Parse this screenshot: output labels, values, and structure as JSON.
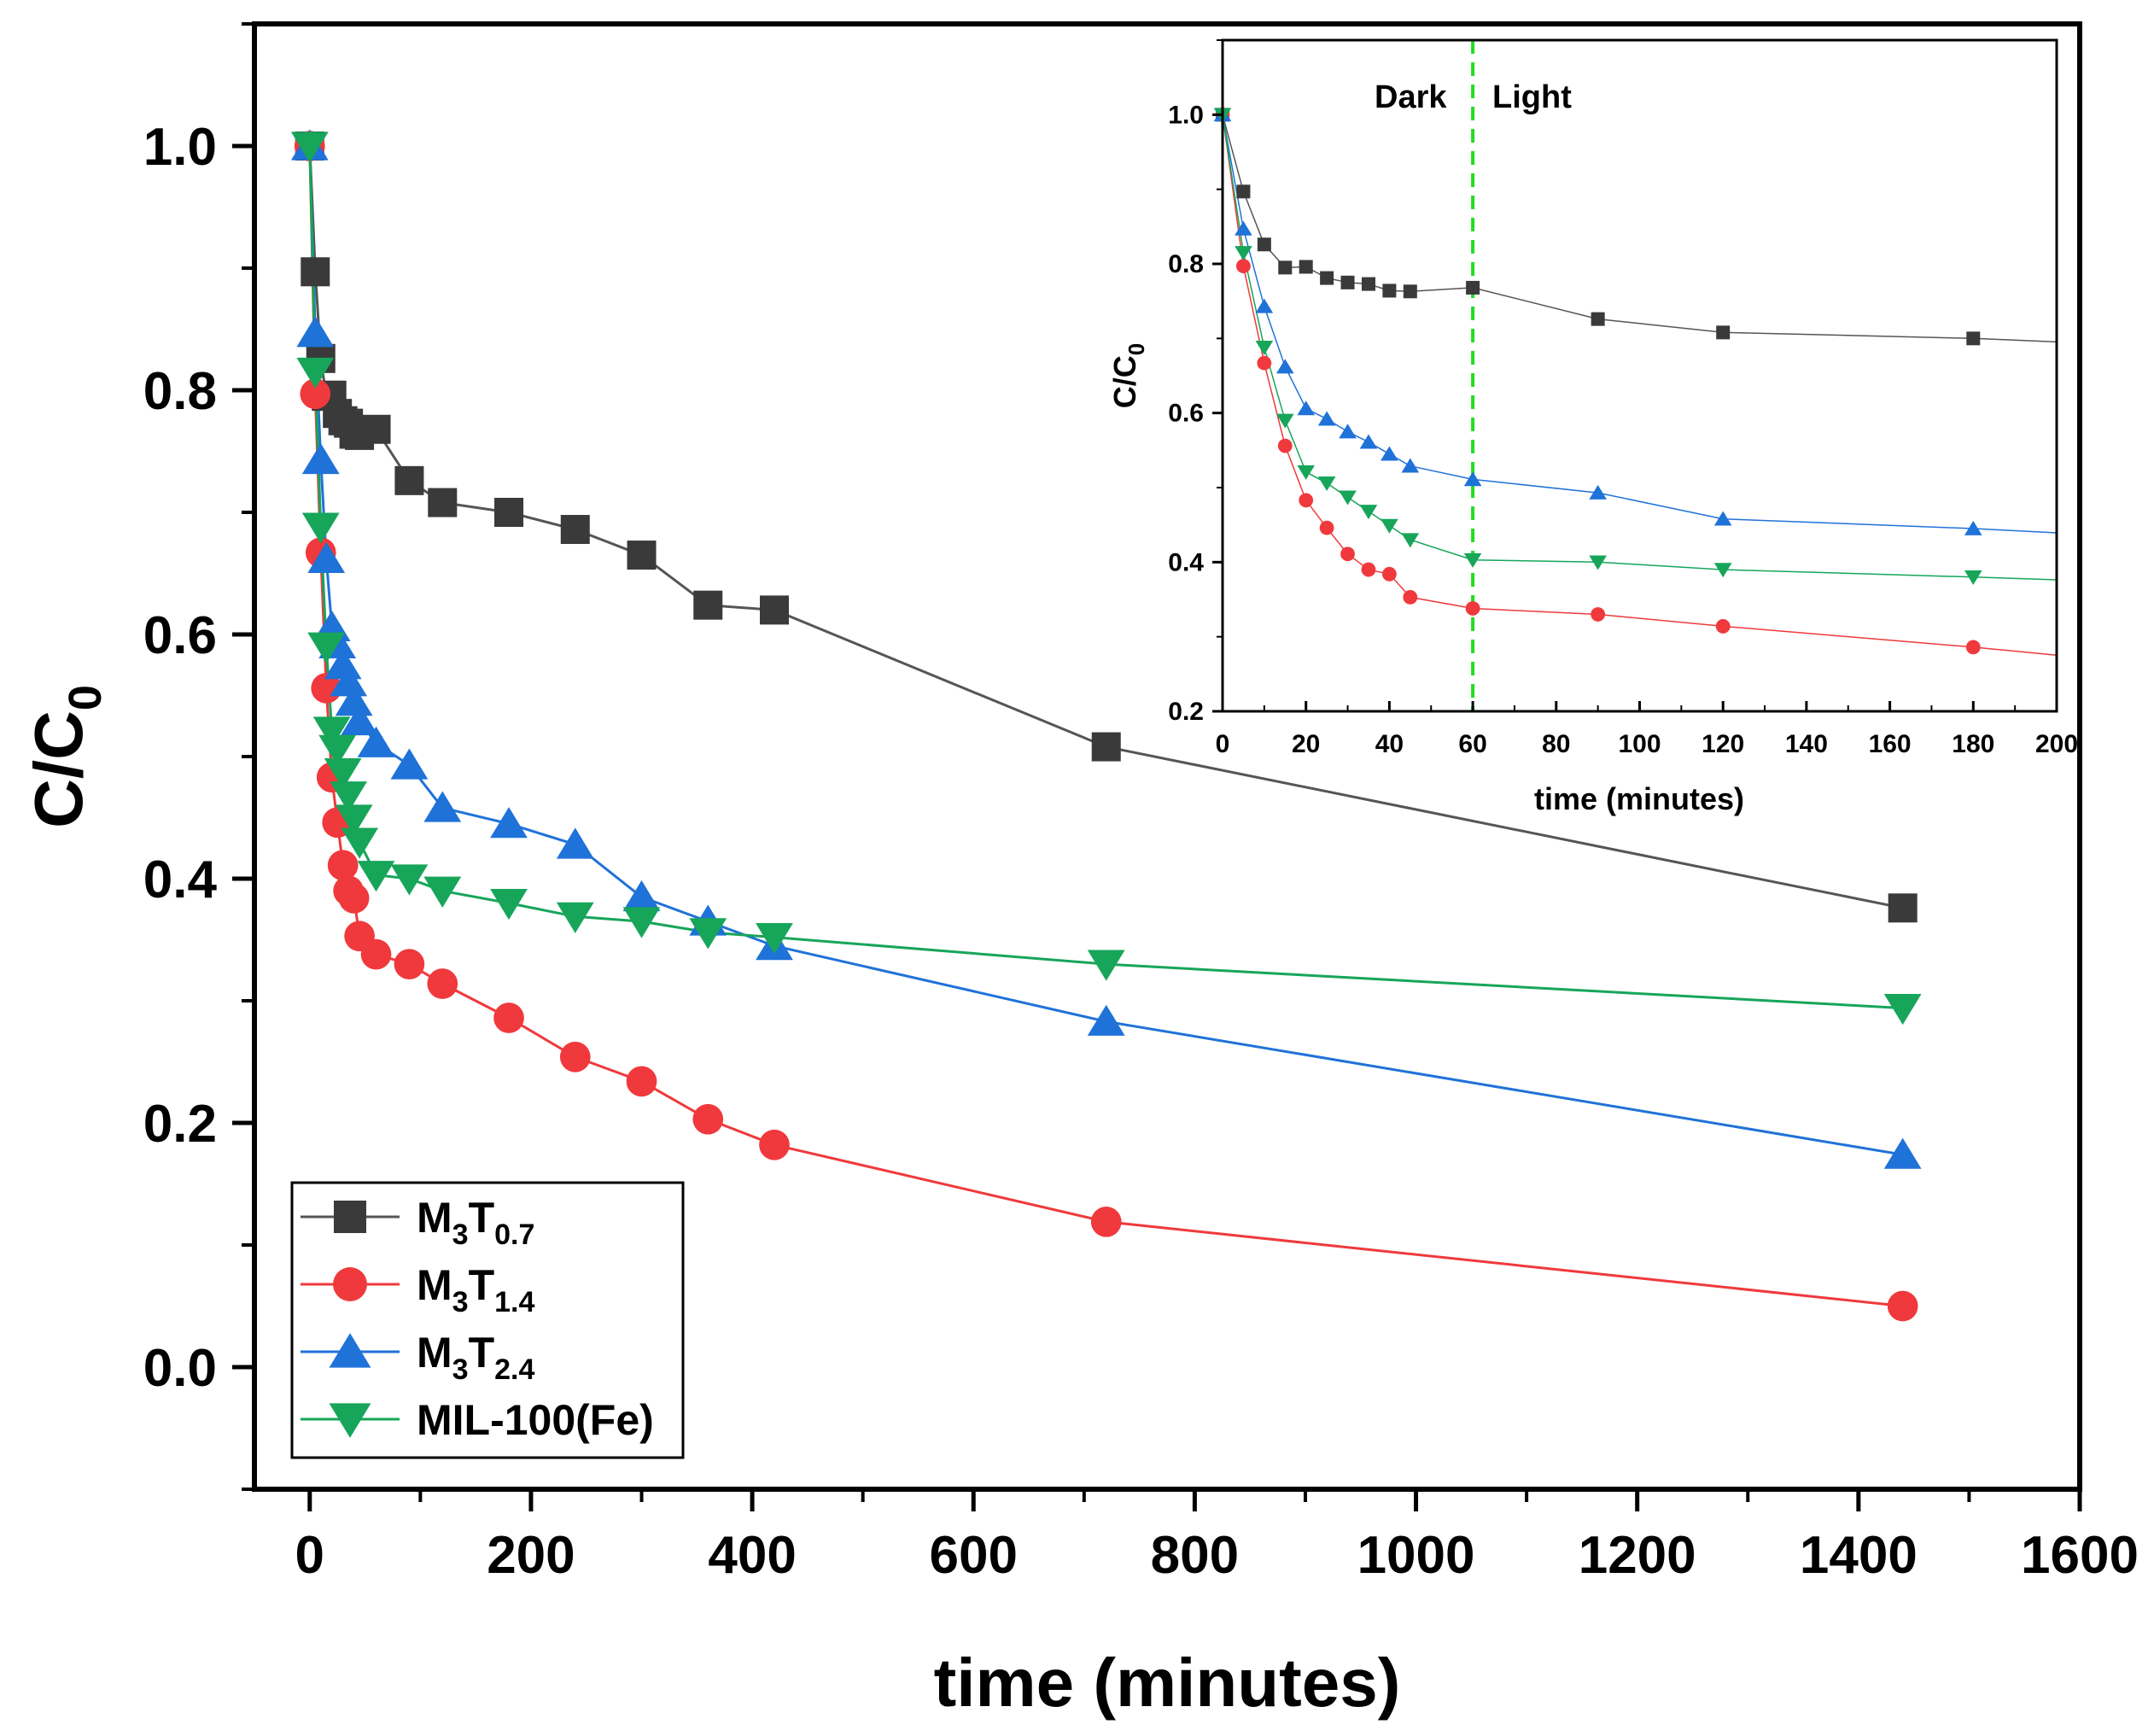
{
  "chart_data": [
    {
      "id": "main",
      "type": "line",
      "xlabel": "time (minutes)",
      "ylabel": {
        "main": "C/C",
        "sub": "0"
      },
      "xlim": [
        -50,
        1600
      ],
      "ylim": [
        -0.1,
        1.1
      ],
      "xticks": [
        "0",
        "200",
        "400",
        "600",
        "800",
        "1000",
        "1200",
        "1400",
        "1600"
      ],
      "xtick_values": [
        0,
        200,
        400,
        600,
        800,
        1000,
        1200,
        1400,
        1600
      ],
      "yticks": [
        "0.0",
        "0.2",
        "0.4",
        "0.6",
        "0.8",
        "1.0"
      ],
      "ytick_values": [
        0.0,
        0.2,
        0.4,
        0.6,
        0.8,
        1.0
      ],
      "legend_position": "bottom-left",
      "series": [
        {
          "name": "M3T0.7",
          "label_parts": {
            "a": "M",
            "a_sub": "3",
            "b": "T",
            "b_sub": "0.7"
          },
          "color": "#3a3a3a",
          "line_color": "#555555",
          "marker": "square",
          "x": [
            0,
            5,
            10,
            15,
            20,
            25,
            30,
            35,
            40,
            45,
            60,
            90,
            120,
            180,
            240,
            300,
            360,
            420,
            720,
            1440
          ],
          "y": [
            1.0,
            0.897,
            0.826,
            0.795,
            0.796,
            0.781,
            0.775,
            0.773,
            0.764,
            0.763,
            0.768,
            0.726,
            0.708,
            0.7,
            0.686,
            0.665,
            0.624,
            0.62,
            0.508,
            0.376
          ]
        },
        {
          "name": "M3T1.4",
          "label_parts": {
            "a": "M",
            "a_sub": "3",
            "b": "T",
            "b_sub": "1.4"
          },
          "color": "#f0393c",
          "line_color": "#f0393c",
          "marker": "circle",
          "x": [
            0,
            5,
            10,
            15,
            20,
            25,
            30,
            35,
            40,
            45,
            60,
            90,
            120,
            180,
            240,
            300,
            360,
            420,
            720,
            1440
          ],
          "y": [
            1.0,
            0.797,
            0.667,
            0.556,
            0.483,
            0.446,
            0.411,
            0.39,
            0.384,
            0.353,
            0.338,
            0.33,
            0.314,
            0.286,
            0.254,
            0.234,
            0.203,
            0.182,
            0.119,
            0.05
          ]
        },
        {
          "name": "M3T2.4",
          "label_parts": {
            "a": "M",
            "a_sub": "3",
            "b": "T",
            "b_sub": "2.4"
          },
          "color": "#1f72d8",
          "line_color": "#1f72d8",
          "marker": "triangle-up",
          "x": [
            0,
            5,
            10,
            15,
            20,
            25,
            30,
            35,
            40,
            45,
            60,
            90,
            120,
            180,
            240,
            300,
            360,
            420,
            720,
            1440
          ],
          "y": [
            1.0,
            0.847,
            0.743,
            0.662,
            0.606,
            0.592,
            0.575,
            0.561,
            0.545,
            0.529,
            0.511,
            0.493,
            0.458,
            0.445,
            0.428,
            0.385,
            0.365,
            0.345,
            0.283,
            0.174
          ]
        },
        {
          "name": "MIL-100(Fe)",
          "label_parts": {
            "a": "MIL-100(Fe)",
            "a_sub": "",
            "b": "",
            "b_sub": ""
          },
          "color": "#17a55a",
          "line_color": "#17a55a",
          "marker": "triangle-down",
          "x": [
            0,
            5,
            10,
            15,
            20,
            25,
            30,
            35,
            40,
            45,
            60,
            90,
            120,
            180,
            240,
            300,
            360,
            420,
            720,
            1440
          ],
          "y": [
            1.0,
            0.815,
            0.688,
            0.59,
            0.521,
            0.506,
            0.487,
            0.468,
            0.449,
            0.43,
            0.403,
            0.4,
            0.39,
            0.38,
            0.369,
            0.365,
            0.356,
            0.352,
            0.33,
            0.294
          ]
        }
      ]
    },
    {
      "id": "inset",
      "type": "line",
      "xlabel": "time (minutes)",
      "ylabel": {
        "main": "C/C",
        "sub": "0"
      },
      "xlim": [
        0,
        200
      ],
      "ylim": [
        0.2,
        1.1
      ],
      "xticks": [
        "0",
        "20",
        "40",
        "60",
        "80",
        "100",
        "120",
        "140",
        "160",
        "180",
        "200"
      ],
      "xtick_values": [
        0,
        20,
        40,
        60,
        80,
        100,
        120,
        140,
        160,
        180,
        200
      ],
      "yticks": [
        "0.2",
        "0.4",
        "0.6",
        "0.8",
        "1.0"
      ],
      "ytick_values": [
        0.2,
        0.4,
        0.6,
        0.8,
        1.0
      ],
      "annotations": {
        "divider_x": 60,
        "divider_color": "#22dd22",
        "left_label": "Dark",
        "right_label": "Light"
      }
    }
  ]
}
